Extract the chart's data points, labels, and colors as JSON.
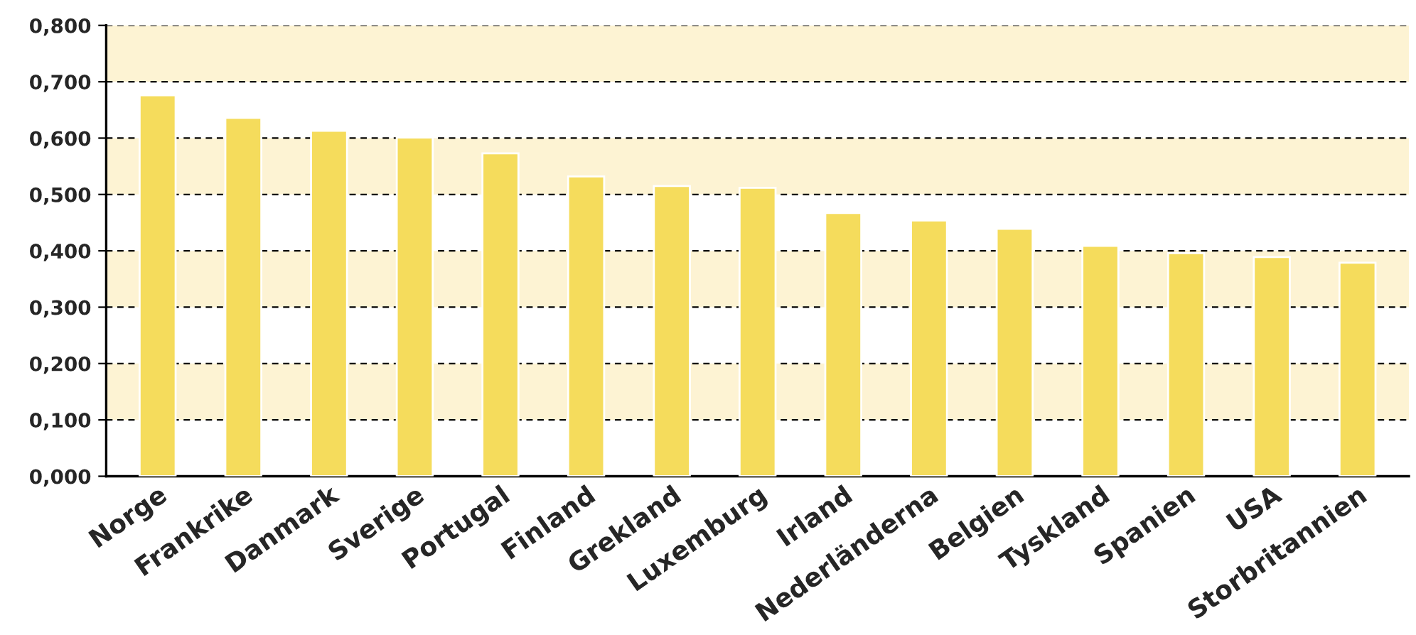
{
  "chart_data": {
    "type": "bar",
    "categories": [
      "Norge",
      "Frankrike",
      "Danmark",
      "Sverige",
      "Portugal",
      "Finland",
      "Grekland",
      "Luxemburg",
      "Irland",
      "Nederländerna",
      "Belgien",
      "Tyskland",
      "Spanien",
      "USA",
      "Storbritannien"
    ],
    "values": [
      0.676,
      0.636,
      0.613,
      0.601,
      0.573,
      0.532,
      0.515,
      0.512,
      0.467,
      0.454,
      0.439,
      0.409,
      0.396,
      0.389,
      0.379
    ],
    "color": "#f5dc5c",
    "ylim": [
      0,
      0.8
    ],
    "yticks": [
      {
        "value": 0,
        "label": "0,000"
      },
      {
        "value": 0.1,
        "label": "0,100"
      },
      {
        "value": 0.2,
        "label": "0,200"
      },
      {
        "value": 0.3,
        "label": "0,300"
      },
      {
        "value": 0.4,
        "label": "0,400"
      },
      {
        "value": 0.5,
        "label": "0,500"
      },
      {
        "value": 0.6,
        "label": "0,600"
      },
      {
        "value": 0.7,
        "label": "0,700"
      },
      {
        "value": 0.8,
        "label": "0,800"
      }
    ],
    "bands": [
      {
        "axis": "y",
        "from": 0.1,
        "to": 0.2,
        "color": "#fdf3d3"
      },
      {
        "axis": "y",
        "from": 0.3,
        "to": 0.4,
        "color": "#fdf3d3"
      },
      {
        "axis": "y",
        "from": 0.5,
        "to": 0.6,
        "color": "#fdf3d3"
      },
      {
        "axis": "y",
        "from": 0.7,
        "to": 0.8,
        "color": "#fdf3d3"
      }
    ],
    "grid": "y"
  }
}
